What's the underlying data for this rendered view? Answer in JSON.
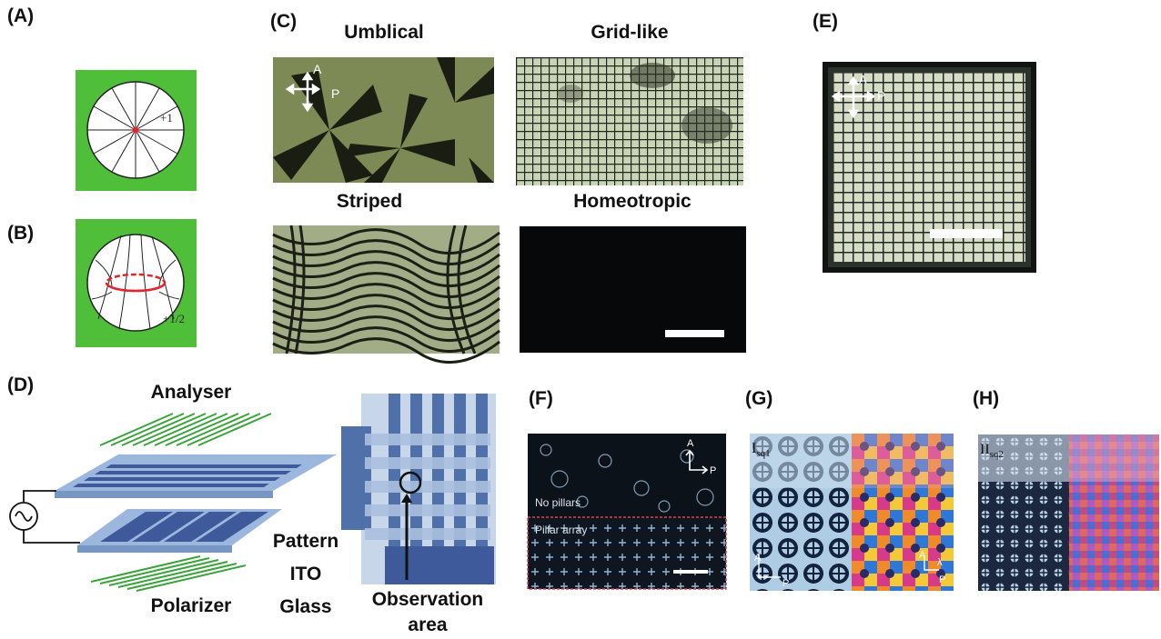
{
  "panels": {
    "A": {
      "label": "(A)",
      "defect_label": "+1"
    },
    "B": {
      "label": "(B)",
      "defect_label": "+1/2"
    },
    "C": {
      "label": "(C)",
      "titles": [
        "Umblical",
        "Grid-like",
        "Striped",
        "Homeotropic"
      ],
      "axis_a": "A",
      "axis_p": "P"
    },
    "D": {
      "label": "(D)",
      "analyser": "Analyser",
      "polarizer": "Polarizer",
      "pattern": "Pattern",
      "ito": "ITO",
      "glass": "Glass",
      "observation_line1": "Observation",
      "observation_line2": "area"
    },
    "E": {
      "label": "(E)",
      "axis_a": "A",
      "axis_p": "P"
    },
    "F": {
      "label": "(F)",
      "no_pillars": "No pillars",
      "pillar_array": "Pillar array",
      "axis_a": "A",
      "axis_p": "P"
    },
    "G": {
      "label": "(G)",
      "inset_main": "I",
      "inset_sub": "sq1",
      "axis_a": "A",
      "axis_p": "P",
      "lambda": "λ"
    },
    "H": {
      "label": "(H)",
      "inset_main": "II",
      "inset_sub": "sq2"
    }
  },
  "colors": {
    "green_bg": "#4fbf3a",
    "red_defect": "#e0262a",
    "ito_blue": "#3f5a9a",
    "glass_blue": "#9cb7dd",
    "grating_green": "#3aa33a"
  }
}
